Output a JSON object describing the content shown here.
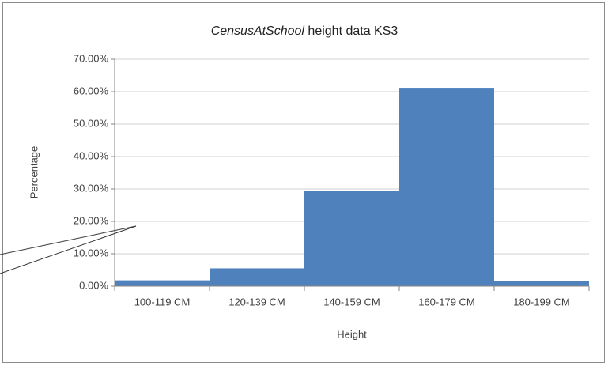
{
  "chart_data": {
    "type": "bar",
    "title": "CensusAtSchool height data KS3",
    "x_label": "Height",
    "y_label": "Percentage",
    "categories": [
      "100-119 CM",
      "120-139 CM",
      "140-159 CM",
      "160-179 CM",
      "180-199 CM"
    ],
    "values": [
      1.8,
      5.5,
      29.3,
      61.2,
      1.5
    ],
    "color": "#4f81bd",
    "ylim": [
      0,
      70
    ],
    "yticks": [
      {
        "value": 0,
        "label": "0.00%"
      },
      {
        "value": 10,
        "label": "10.00%"
      },
      {
        "value": 20,
        "label": "20.00%"
      },
      {
        "value": 30,
        "label": "30.00%"
      },
      {
        "value": 40,
        "label": "40.00%"
      },
      {
        "value": 50,
        "label": "50.00%"
      },
      {
        "value": 60,
        "label": "60.00%"
      },
      {
        "value": 70,
        "label": "70.00%"
      }
    ],
    "grid": true
  }
}
